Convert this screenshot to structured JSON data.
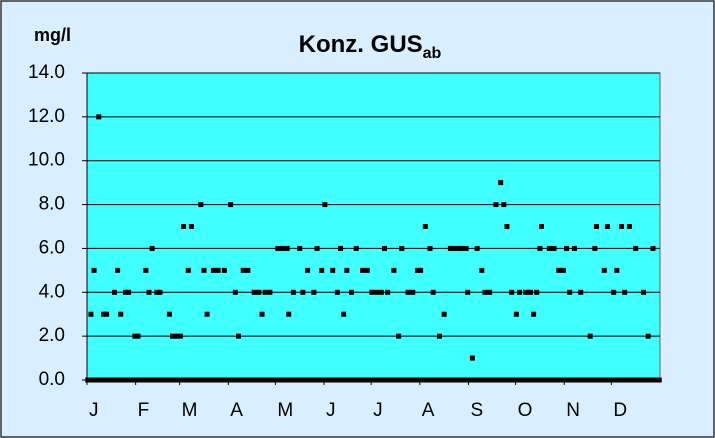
{
  "chart_data": {
    "type": "scatter",
    "title": "Konz. GUS",
    "title_subscript": "ab",
    "y_label": "mg/l",
    "color": "#000000",
    "background": "#40ffff",
    "grid": true,
    "xlim": [
      0.5,
      365.5
    ],
    "ylim": [
      0,
      14
    ],
    "yticks": [
      {
        "value": 0,
        "label": "0.0"
      },
      {
        "value": 2,
        "label": "2.0"
      },
      {
        "value": 4,
        "label": "4.0"
      },
      {
        "value": 6,
        "label": "6.0"
      },
      {
        "value": 8,
        "label": "8.0"
      },
      {
        "value": 10,
        "label": "10.0"
      },
      {
        "value": 12,
        "label": "12.0"
      },
      {
        "value": 14,
        "label": "14.0"
      }
    ],
    "xticks": [
      {
        "value": 1,
        "label": "J"
      },
      {
        "value": 32,
        "label": "F"
      },
      {
        "value": 60,
        "label": "M"
      },
      {
        "value": 91,
        "label": "A"
      },
      {
        "value": 121,
        "label": "M"
      },
      {
        "value": 152,
        "label": "J"
      },
      {
        "value": 182,
        "label": "J"
      },
      {
        "value": 213,
        "label": "A"
      },
      {
        "value": 244,
        "label": "S"
      },
      {
        "value": 274,
        "label": "O"
      },
      {
        "value": 305,
        "label": "N"
      },
      {
        "value": 335,
        "label": "D"
      }
    ],
    "x": [
      1,
      2,
      3,
      4,
      5,
      6,
      7,
      8,
      9,
      10,
      11,
      12,
      13,
      14,
      15,
      16,
      17,
      18,
      19,
      20,
      21,
      22,
      23,
      24,
      25,
      26,
      27,
      28,
      29,
      30,
      31,
      32,
      33,
      34,
      35,
      36,
      37,
      38,
      39,
      40,
      41,
      42,
      43,
      44,
      45,
      46,
      47,
      48,
      49,
      50,
      51,
      52,
      53,
      54,
      55,
      56,
      57,
      58,
      59,
      60,
      61,
      62,
      63,
      64,
      65,
      66,
      67,
      68,
      69,
      70,
      71,
      72,
      73,
      74,
      75,
      76,
      77,
      78,
      79,
      80,
      81,
      82,
      83,
      84,
      85,
      86,
      87,
      88,
      89,
      90,
      91,
      92,
      93,
      94,
      95,
      96,
      97,
      98,
      99,
      100,
      101,
      102,
      103,
      104,
      105,
      106,
      107,
      108,
      109,
      110,
      111,
      112,
      113,
      114,
      115,
      116,
      117,
      118,
      119,
      120,
      121,
      122,
      123,
      124,
      125,
      126,
      127,
      128,
      129,
      130,
      131,
      132,
      133,
      134,
      135,
      136,
      137,
      138,
      139,
      140,
      141,
      142,
      143,
      144,
      145,
      146,
      147,
      148,
      149,
      150,
      151,
      152,
      153,
      154,
      155,
      156,
      157,
      158,
      159,
      160,
      161,
      162,
      163,
      164,
      165,
      166,
      167,
      168,
      169,
      170,
      171,
      172,
      173,
      174,
      175,
      176,
      177,
      178,
      179,
      180,
      181,
      182,
      183,
      184,
      185,
      186,
      187,
      188,
      189,
      190,
      191,
      192,
      193,
      194,
      195,
      196,
      197,
      198,
      199,
      200,
      201,
      202,
      203,
      204,
      205,
      206,
      207,
      208,
      209,
      210,
      211,
      212,
      213,
      214,
      215,
      216,
      217,
      218,
      219,
      220,
      221,
      222,
      223,
      224,
      225,
      226,
      227,
      228,
      229,
      230,
      231,
      232,
      233,
      234,
      235,
      236,
      237,
      238,
      239,
      240,
      241,
      242,
      243,
      244,
      245,
      246,
      247,
      248,
      249,
      250,
      251,
      252,
      253,
      254,
      255,
      256,
      257,
      258,
      259,
      260,
      261,
      262,
      263,
      264,
      265,
      266,
      267,
      268,
      269,
      270,
      271,
      272,
      273,
      274,
      275,
      276,
      277,
      278,
      279,
      280,
      281,
      282,
      283,
      284,
      285,
      286,
      287,
      288,
      289,
      290,
      291,
      292,
      293,
      294,
      295,
      296,
      297,
      298,
      299,
      300,
      301,
      302,
      303,
      304,
      305,
      306,
      307,
      308,
      309,
      310,
      311,
      312,
      313,
      314,
      315,
      316,
      317,
      318,
      319,
      320,
      321,
      322,
      323,
      324,
      325,
      326,
      327,
      328,
      329,
      330,
      331,
      332,
      333,
      334,
      335,
      336,
      337,
      338,
      339,
      340,
      341,
      342,
      343,
      344,
      345,
      346,
      347,
      348,
      349,
      350,
      351,
      352,
      353,
      354,
      355,
      356,
      357,
      358,
      359,
      360,
      361,
      362,
      363,
      364,
      365
    ],
    "values": [
      0,
      0,
      3,
      0,
      5,
      0,
      0,
      12,
      0,
      0,
      3,
      0,
      3,
      0,
      0,
      0,
      0,
      4,
      0,
      5,
      0,
      3,
      0,
      0,
      4,
      0,
      4,
      0,
      0,
      0,
      2,
      0,
      2,
      0,
      0,
      0,
      0,
      5,
      0,
      4,
      0,
      6,
      0,
      0,
      4,
      0,
      4,
      0,
      0,
      0,
      0,
      0,
      3,
      0,
      2,
      0,
      2,
      0,
      0,
      2,
      0,
      7,
      0,
      0,
      5,
      0,
      7,
      0,
      0,
      0,
      0,
      0,
      8,
      0,
      5,
      0,
      3,
      0,
      0,
      0,
      5,
      0,
      0,
      5,
      0,
      0,
      0,
      5,
      0,
      0,
      0,
      8,
      0,
      0,
      4,
      0,
      2,
      0,
      0,
      5,
      0,
      0,
      5,
      0,
      0,
      0,
      4,
      0,
      0,
      4,
      0,
      3,
      0,
      4,
      0,
      0,
      4,
      0,
      0,
      0,
      0,
      6,
      0,
      0,
      6,
      0,
      0,
      6,
      3,
      0,
      0,
      4,
      0,
      0,
      0,
      6,
      0,
      4,
      0,
      0,
      5,
      0,
      0,
      0,
      4,
      0,
      6,
      0,
      0,
      5,
      0,
      8,
      0,
      0,
      0,
      0,
      5,
      0,
      0,
      4,
      0,
      6,
      0,
      3,
      0,
      5,
      0,
      0,
      4,
      0,
      0,
      6,
      0,
      0,
      0,
      5,
      0,
      0,
      5,
      0,
      0,
      4,
      0,
      0,
      4,
      0,
      0,
      4,
      0,
      6,
      0,
      4,
      0,
      0,
      0,
      5,
      0,
      0,
      2,
      0,
      6,
      0,
      0,
      0,
      4,
      0,
      0,
      4,
      0,
      0,
      5,
      0,
      5,
      0,
      0,
      7,
      0,
      0,
      6,
      0,
      4,
      0,
      0,
      0,
      2,
      0,
      0,
      3,
      0,
      0,
      0,
      6,
      0,
      6,
      0,
      0,
      6,
      0,
      6,
      0,
      0,
      6,
      4,
      0,
      0,
      1,
      0,
      0,
      6,
      0,
      0,
      5,
      0,
      4,
      0,
      0,
      4,
      0,
      0,
      0,
      8,
      0,
      0,
      9,
      0,
      8,
      0,
      7,
      0,
      0,
      4,
      0,
      0,
      3,
      0,
      4,
      0,
      0,
      0,
      4,
      0,
      0,
      4,
      0,
      3,
      0,
      4,
      0,
      6,
      7,
      0,
      0,
      0,
      0,
      6,
      0,
      0,
      6,
      0,
      0,
      5,
      0,
      0,
      5,
      0,
      6,
      0,
      4,
      0,
      0,
      6,
      0,
      0,
      0,
      4,
      0,
      0,
      0,
      0,
      0,
      2,
      0,
      0,
      6,
      7,
      0,
      0,
      0,
      0,
      5,
      0,
      7,
      0,
      0,
      0,
      4,
      0,
      5,
      0,
      0,
      7,
      0,
      4,
      0,
      0,
      7,
      0,
      0,
      0,
      6,
      0,
      0,
      0,
      0,
      4,
      0,
      0,
      2,
      0,
      0,
      6,
      0,
      0,
      0,
      0
    ]
  }
}
